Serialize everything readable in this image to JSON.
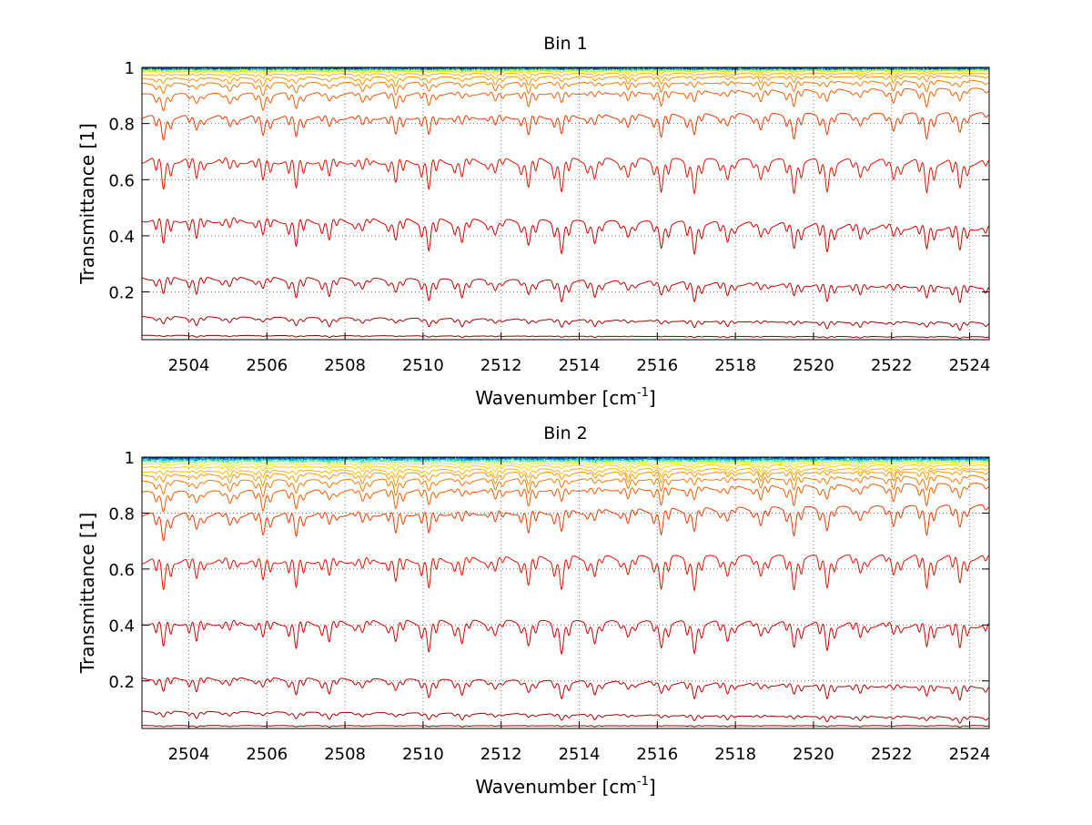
{
  "chart_data": [
    {
      "type": "line",
      "title": "Bin 1",
      "xlabel": "Wavenumber [cm",
      "xlabel_sup": "-1",
      "xlabel_end": "]",
      "ylabel": "Transmittance [1]",
      "xlim": [
        2502.8,
        2524.5
      ],
      "ylim": [
        0.03,
        1.0
      ],
      "xticks": [
        2504,
        2506,
        2508,
        2510,
        2512,
        2514,
        2516,
        2518,
        2520,
        2522,
        2524
      ],
      "yticks": [
        0.2,
        0.4,
        0.6,
        0.8,
        1
      ],
      "grid": true,
      "absorption_line_spacing": 0.85,
      "series": [
        {
          "base_start": 0.045,
          "base_end": 0.04,
          "depth": 0.005,
          "color": "#8b0000"
        },
        {
          "base_start": 0.11,
          "base_end": 0.09,
          "depth": 0.025,
          "color": "#a50000"
        },
        {
          "base_start": 0.25,
          "base_end": 0.22,
          "depth": 0.06,
          "color": "#bf0000"
        },
        {
          "base_start": 0.46,
          "base_end": 0.43,
          "depth": 0.09,
          "color": "#d40000"
        },
        {
          "base_start": 0.67,
          "base_end": 0.66,
          "depth": 0.1,
          "color": "#e31200"
        },
        {
          "base_start": 0.82,
          "base_end": 0.83,
          "depth": 0.07,
          "color": "#ee3a00"
        },
        {
          "base_start": 0.9,
          "base_end": 0.92,
          "depth": 0.05,
          "color": "#f55a00"
        },
        {
          "base_start": 0.94,
          "base_end": 0.95,
          "depth": 0.035,
          "color": "#fa7800"
        },
        {
          "base_start": 0.96,
          "base_end": 0.97,
          "depth": 0.025,
          "color": "#ff9600"
        },
        {
          "base_start": 0.975,
          "base_end": 0.98,
          "depth": 0.015,
          "color": "#ffb400"
        },
        {
          "base_start": 0.985,
          "base_end": 0.988,
          "depth": 0.01,
          "color": "#ffd200"
        },
        {
          "base_start": 0.99,
          "base_end": 0.992,
          "depth": 0.006,
          "color": "#f0f000"
        },
        {
          "base_start": 0.993,
          "base_end": 0.995,
          "depth": 0.004,
          "color": "#aaf050"
        },
        {
          "base_start": 0.996,
          "base_end": 0.997,
          "depth": 0.003,
          "color": "#50e6a0"
        },
        {
          "base_start": 0.998,
          "base_end": 0.998,
          "depth": 0.002,
          "color": "#00c8dc"
        },
        {
          "base_start": 0.999,
          "base_end": 0.999,
          "depth": 0.002,
          "color": "#0078dc"
        },
        {
          "base_start": 1.0,
          "base_end": 1.0,
          "depth": 0.002,
          "color": "#0032b4"
        }
      ]
    },
    {
      "type": "line",
      "title": "Bin 2",
      "xlabel": "Wavenumber [cm",
      "xlabel_sup": "-1",
      "xlabel_end": "]",
      "ylabel": "Transmittance [1]",
      "xlim": [
        2502.8,
        2524.5
      ],
      "ylim": [
        0.03,
        1.0
      ],
      "xticks": [
        2504,
        2506,
        2508,
        2510,
        2512,
        2514,
        2516,
        2518,
        2520,
        2522,
        2524
      ],
      "yticks": [
        0.2,
        0.4,
        0.6,
        0.8,
        1
      ],
      "grid": true,
      "absorption_line_spacing": 0.85,
      "series": [
        {
          "base_start": 0.04,
          "base_end": 0.04,
          "depth": 0.004,
          "color": "#8b0000"
        },
        {
          "base_start": 0.09,
          "base_end": 0.07,
          "depth": 0.02,
          "color": "#a50000"
        },
        {
          "base_start": 0.21,
          "base_end": 0.18,
          "depth": 0.05,
          "color": "#bf0000"
        },
        {
          "base_start": 0.41,
          "base_end": 0.4,
          "depth": 0.09,
          "color": "#d40000"
        },
        {
          "base_start": 0.63,
          "base_end": 0.64,
          "depth": 0.1,
          "color": "#e31200"
        },
        {
          "base_start": 0.79,
          "base_end": 0.82,
          "depth": 0.08,
          "color": "#ee3a00"
        },
        {
          "base_start": 0.87,
          "base_end": 0.9,
          "depth": 0.06,
          "color": "#f55a00"
        },
        {
          "base_start": 0.91,
          "base_end": 0.93,
          "depth": 0.045,
          "color": "#fa7800"
        },
        {
          "base_start": 0.935,
          "base_end": 0.95,
          "depth": 0.035,
          "color": "#ff9600"
        },
        {
          "base_start": 0.95,
          "base_end": 0.96,
          "depth": 0.025,
          "color": "#ffb400"
        },
        {
          "base_start": 0.965,
          "base_end": 0.972,
          "depth": 0.018,
          "color": "#ffd200"
        },
        {
          "base_start": 0.975,
          "base_end": 0.98,
          "depth": 0.012,
          "color": "#f0f000"
        },
        {
          "base_start": 0.983,
          "base_end": 0.986,
          "depth": 0.008,
          "color": "#aaf050"
        },
        {
          "base_start": 0.99,
          "base_end": 0.992,
          "depth": 0.005,
          "color": "#50e6a0"
        },
        {
          "base_start": 0.994,
          "base_end": 0.995,
          "depth": 0.003,
          "color": "#00c8dc"
        },
        {
          "base_start": 0.997,
          "base_end": 0.997,
          "depth": 0.002,
          "color": "#0078dc"
        },
        {
          "base_start": 1.0,
          "base_end": 1.0,
          "depth": 0.002,
          "color": "#0032b4"
        }
      ]
    }
  ]
}
